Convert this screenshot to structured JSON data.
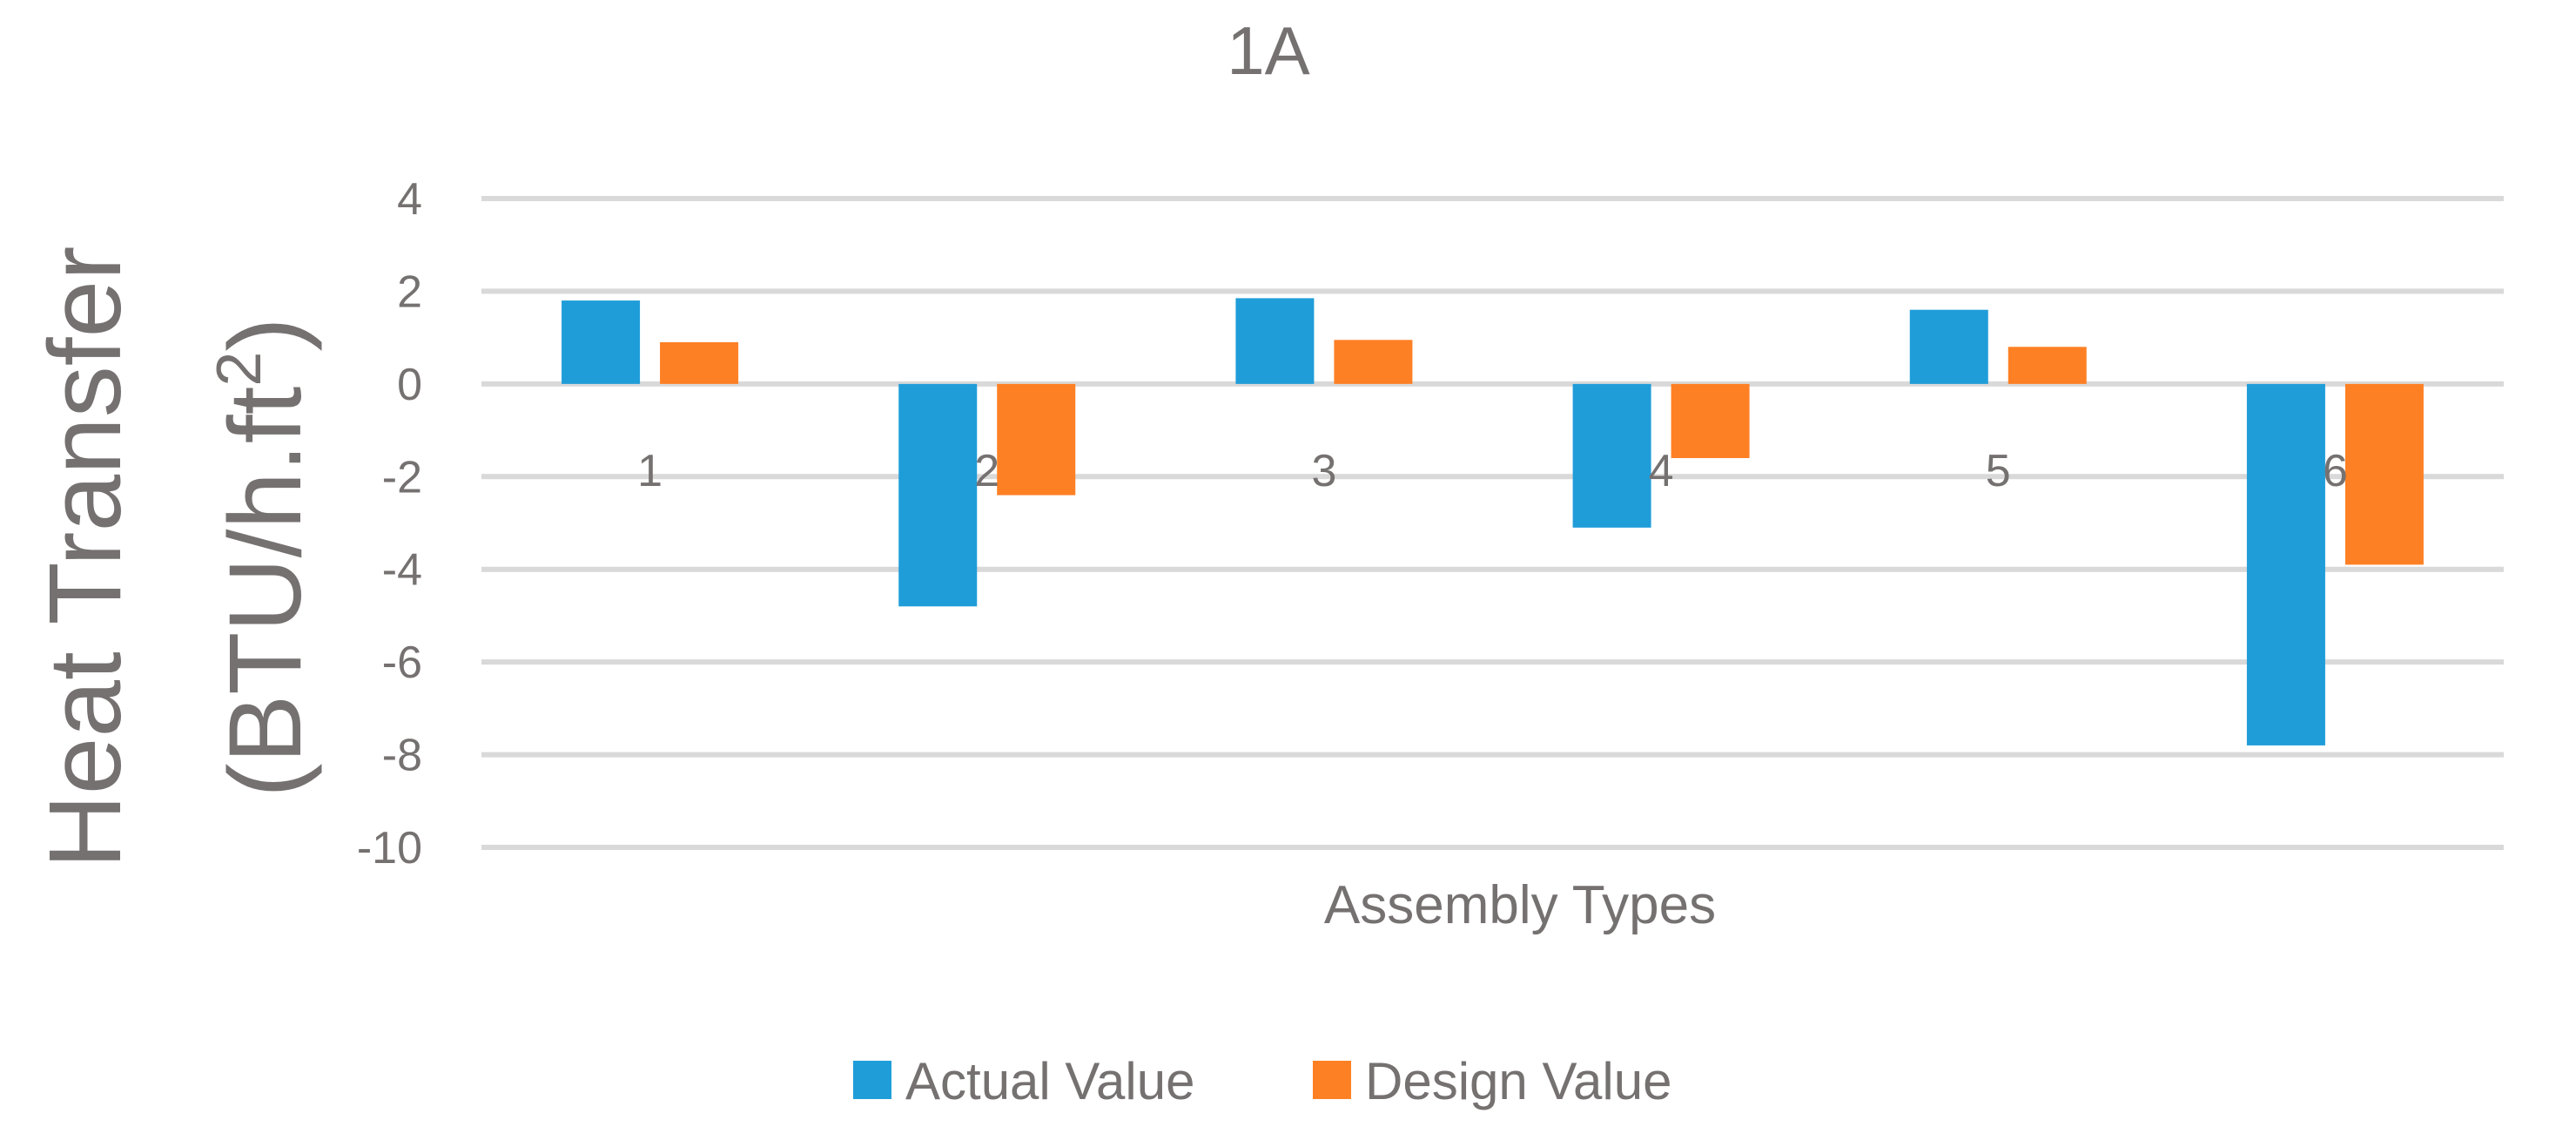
{
  "chart_data": {
    "type": "bar",
    "title": "1A",
    "xlabel": "Assembly Types",
    "ylabel_line1": "Heat Transfer",
    "ylabel_line2_prefix": "(BTU/h.ft",
    "ylabel_superscript": "2",
    "ylabel_line2_suffix": ")",
    "ylim": [
      -10,
      4
    ],
    "yticks": [
      4,
      2,
      0,
      -2,
      -4,
      -6,
      -8,
      -10
    ],
    "ytick_labels": [
      "4",
      "2",
      "0",
      "-2",
      "-4",
      "-6",
      "-8",
      "-10"
    ],
    "grid": true,
    "legend_position": "bottom",
    "categories": [
      "1",
      "2",
      "3",
      "4",
      "5",
      "6"
    ],
    "series": [
      {
        "name": "Actual Value",
        "color": "#1f9dd9",
        "values": [
          1.8,
          -4.8,
          1.85,
          -3.1,
          1.6,
          -7.8
        ]
      },
      {
        "name": "Design Value",
        "color": "#fe8024",
        "values": [
          0.9,
          -2.4,
          0.95,
          -1.6,
          0.8,
          -3.9
        ]
      }
    ]
  }
}
